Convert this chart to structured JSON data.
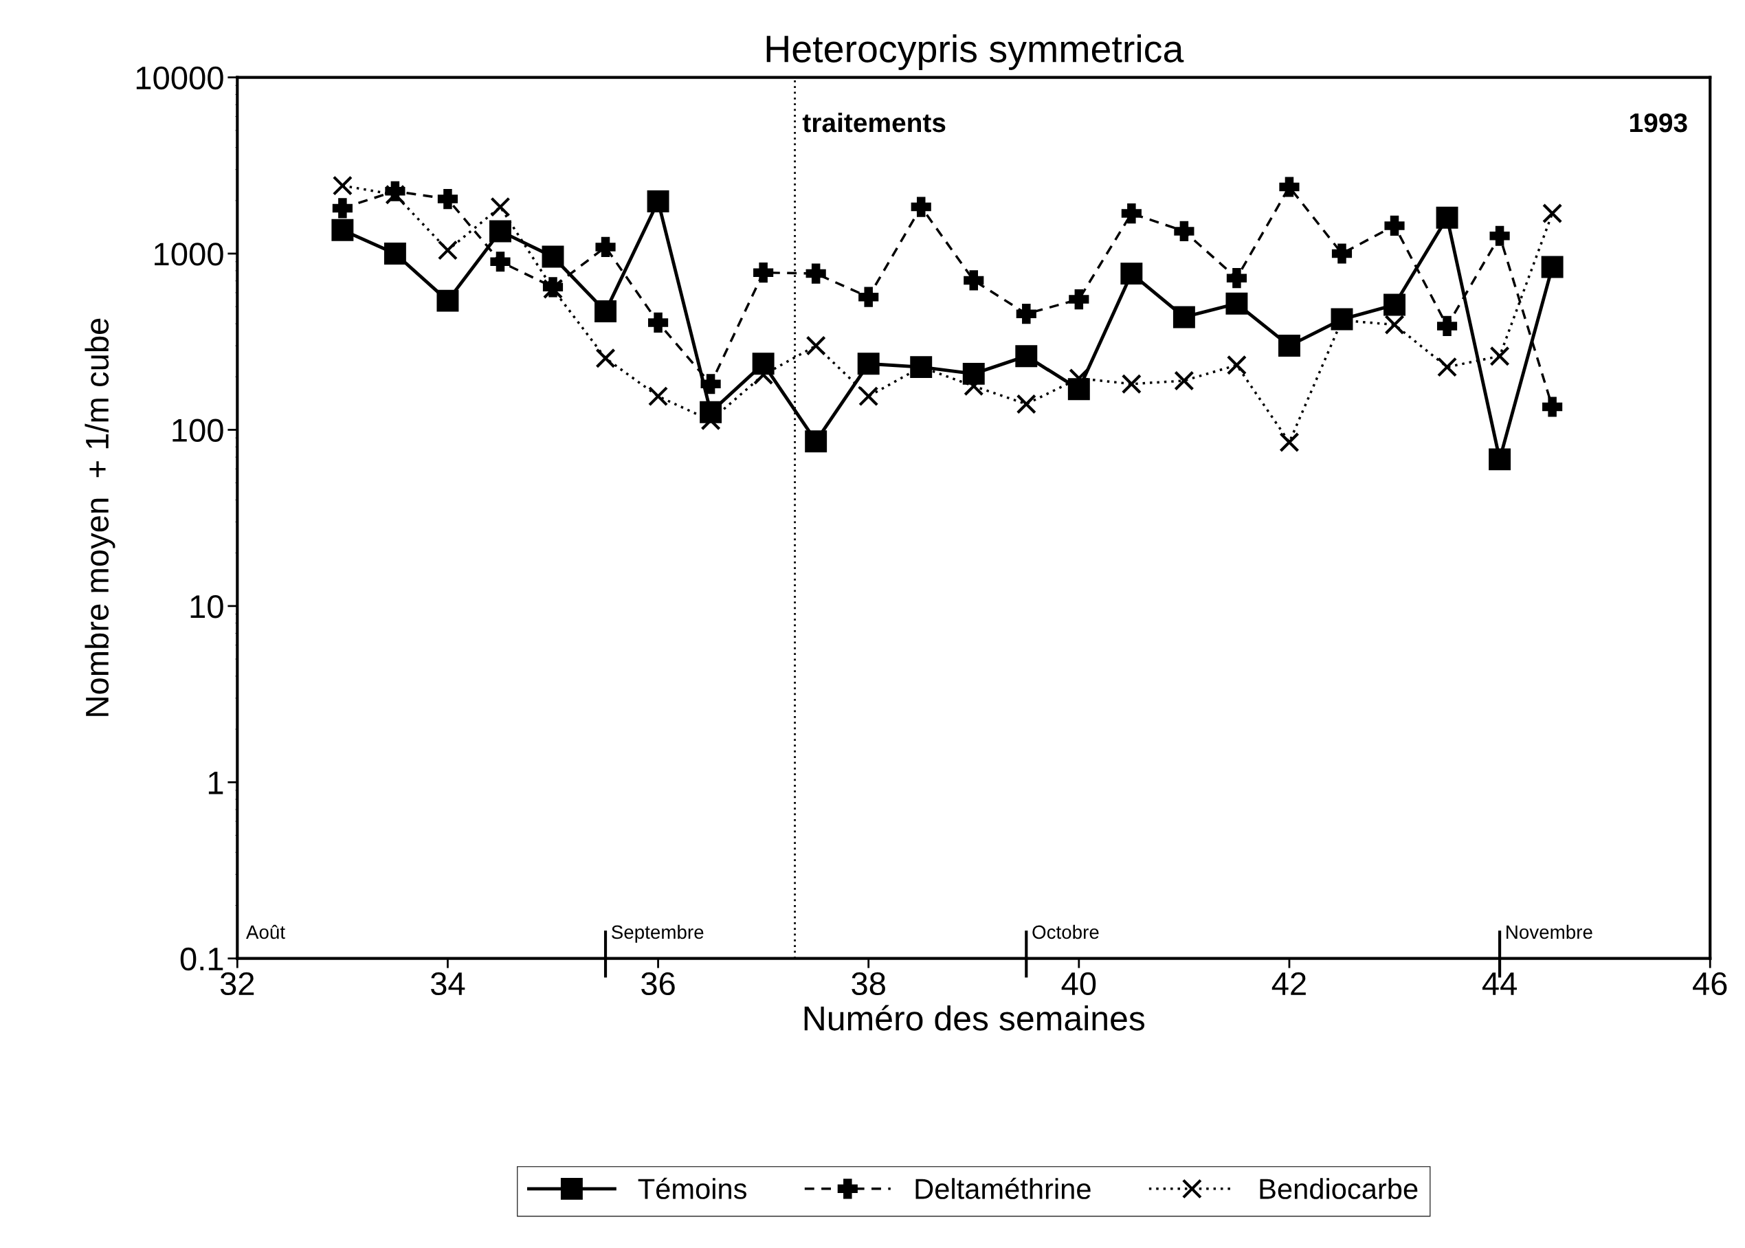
{
  "chart_data": {
    "type": "line",
    "title": "Heterocypris symmetrica",
    "xlabel": "Numéro des semaines",
    "ylabel": "Nombre moyen  + 1/m cube",
    "x": [
      33,
      33.5,
      34,
      34.5,
      35,
      35.5,
      36,
      36.5,
      37,
      37.5,
      38,
      38.5,
      39,
      39.5,
      40,
      40.5,
      41,
      41.5,
      42,
      42.5,
      43,
      43.5,
      44,
      44.5
    ],
    "series": [
      {
        "name": "Témoins",
        "color": "#000000",
        "marker": "square",
        "line_style": "solid",
        "values": [
          1360,
          1000,
          540,
          1340,
          960,
          470,
          1980,
          126,
          237,
          86,
          237,
          227,
          208,
          262,
          170,
          770,
          436,
          520,
          300,
          424,
          512,
          1600,
          68,
          840
        ]
      },
      {
        "name": "Deltaméthrine",
        "color": "#000000",
        "marker": "plus",
        "line_style": "dashed",
        "values": [
          1810,
          2260,
          2040,
          900,
          645,
          1090,
          406,
          182,
          780,
          770,
          567,
          1840,
          705,
          455,
          550,
          1690,
          1340,
          726,
          2390,
          1000,
          1440,
          388,
          1260,
          135
        ]
      },
      {
        "name": "Bendiocarbe",
        "color": "#000000",
        "marker": "cross",
        "line_style": "dotted",
        "values": [
          2430,
          2160,
          1045,
          1840,
          630,
          255,
          155,
          113,
          205,
          300,
          155,
          227,
          177,
          140,
          196,
          182,
          190,
          233,
          85,
          418,
          395,
          227,
          262,
          1690
        ]
      }
    ],
    "log": "y",
    "xlim": [
      32,
      46
    ],
    "xticks": [
      32,
      34,
      36,
      38,
      40,
      42,
      44,
      46
    ],
    "ylim": [
      0.1,
      10000
    ],
    "yticks": [
      {
        "value": 0.1,
        "label": "0.1"
      },
      1,
      10,
      100,
      1000,
      10000
    ],
    "grid": false,
    "legend": "bottom",
    "ref_lines": [
      {
        "axis": "x",
        "value": 37.3,
        "label": "traitements",
        "line_style": "dotted",
        "color": "#000000"
      },
      {
        "axis": "x",
        "value": 35.5,
        "label": "Septembre",
        "line_style": "solid",
        "color": "#000000"
      },
      {
        "axis": "x",
        "value": 39.5,
        "label": "Octobre",
        "line_style": "solid",
        "color": "#000000"
      },
      {
        "axis": "x",
        "value": 44,
        "label": "Novembre",
        "line_style": "solid",
        "color": "#000000"
      }
    ],
    "annotations": [
      "1993",
      "Août"
    ]
  }
}
